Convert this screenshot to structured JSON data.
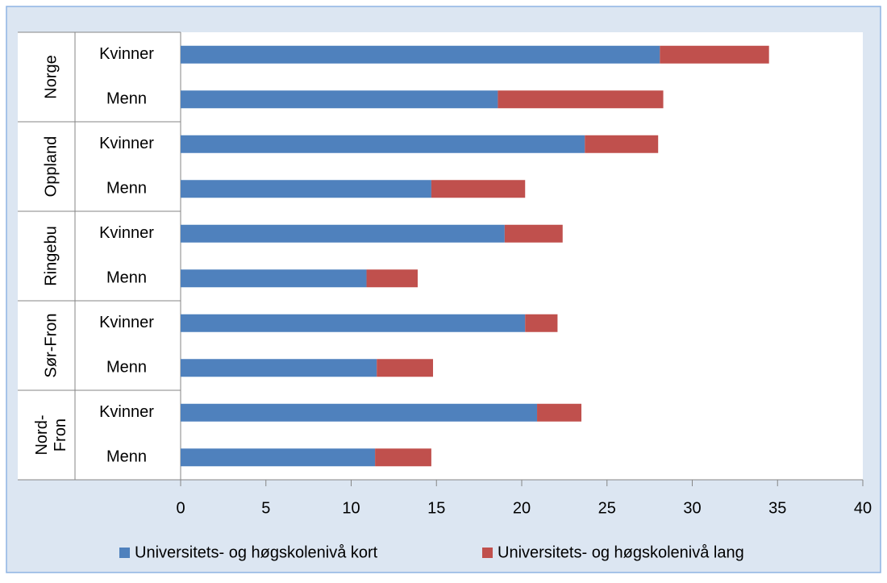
{
  "chart_data": {
    "type": "bar",
    "orientation": "horizontal",
    "stacked": true,
    "groups": [
      [
        "Norge"
      ],
      [
        "Oppland"
      ],
      [
        "Ringebu"
      ],
      [
        "Sør-Fron"
      ],
      [
        "Nord-",
        "Fron"
      ]
    ],
    "categories": [
      "Kvinner",
      "Menn",
      "Kvinner",
      "Menn",
      "Kvinner",
      "Menn",
      "Kvinner",
      "Menn",
      "Kvinner",
      "Menn"
    ],
    "series": [
      {
        "name": "Universitets- og høgskolenivå kort",
        "color": "#4f81bd",
        "values": [
          28.1,
          18.6,
          23.7,
          14.7,
          19.0,
          10.9,
          20.2,
          11.5,
          20.9,
          11.4
        ]
      },
      {
        "name": "Universitets- og høgskolenivå lang",
        "color": "#c0504d",
        "values": [
          6.4,
          9.7,
          4.3,
          5.5,
          3.4,
          3.0,
          1.9,
          3.3,
          2.6,
          3.3
        ]
      }
    ],
    "xlim": [
      0,
      40
    ],
    "xticks": [
      0,
      5,
      10,
      15,
      20,
      25,
      30,
      35,
      40
    ],
    "grid": false,
    "legend": "bottom"
  }
}
